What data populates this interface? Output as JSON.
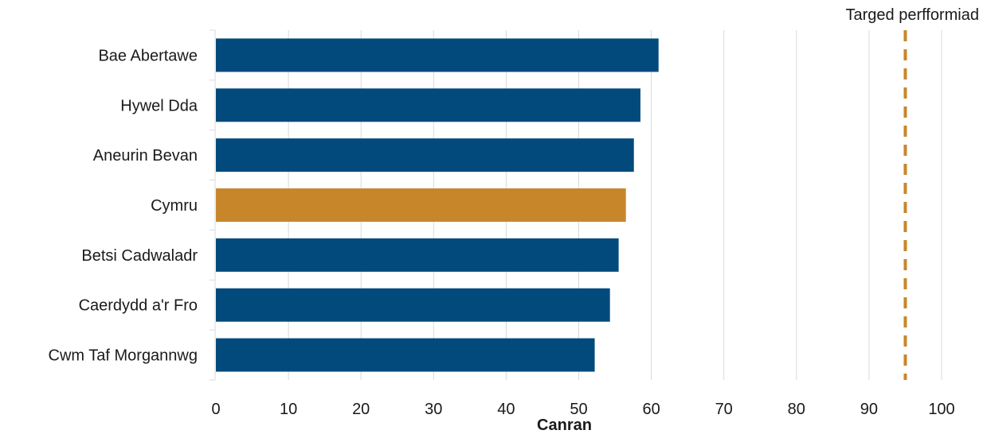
{
  "chart_data": {
    "type": "bar",
    "orientation": "horizontal",
    "categories": [
      "Bae Abertawe",
      "Hywel Dda",
      "Aneurin Bevan",
      "Cymru",
      "Betsi Cadwaladr",
      "Caerdydd a'r Fro",
      "Cwm Taf Morgannwg"
    ],
    "values": [
      61,
      58.5,
      57.6,
      56.5,
      55.5,
      54.3,
      52.2
    ],
    "highlight_category": "Cymru",
    "colors": {
      "bar": "#034a7c",
      "highlight": "#c8862b",
      "target": "#c8862b",
      "grid": "#d9d9d9"
    },
    "xlabel": "Canran",
    "xlim": [
      0,
      100
    ],
    "xticks": [
      0,
      10,
      20,
      30,
      40,
      50,
      60,
      70,
      80,
      90,
      100
    ],
    "target": {
      "value": 95,
      "label": "Targed perfformiad",
      "style": "dashed"
    },
    "grid": "vertical"
  }
}
